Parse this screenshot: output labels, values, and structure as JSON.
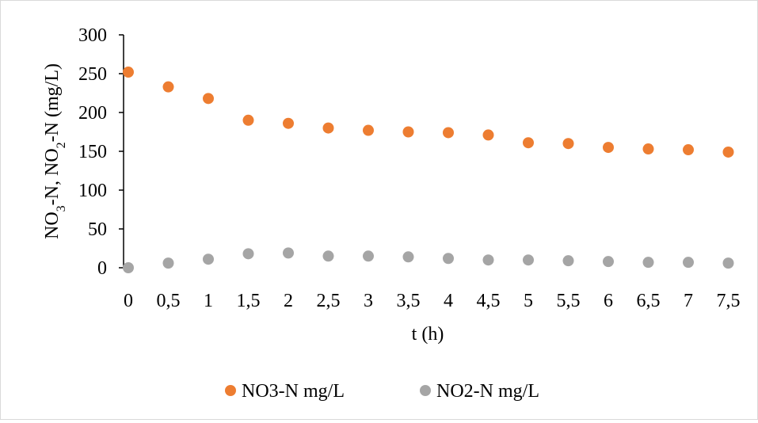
{
  "chart_data": {
    "type": "scatter",
    "xlabel": "t (h)",
    "ylabel": {
      "parts": [
        "NO",
        "3",
        "-N, NO",
        "2",
        "-N (mg/L)"
      ]
    },
    "x": [
      0,
      0.5,
      1,
      1.5,
      2,
      2.5,
      3,
      3.5,
      4,
      4.5,
      5,
      5.5,
      6,
      6.5,
      7,
      7.5
    ],
    "xticks": [
      "0",
      "0,5",
      "1",
      "1,5",
      "2",
      "2,5",
      "3",
      "3,5",
      "4",
      "4,5",
      "5",
      "5,5",
      "6",
      "6,5",
      "7",
      "7,5"
    ],
    "ylim": [
      0,
      300
    ],
    "yticks": [
      "0",
      "50",
      "100",
      "150",
      "200",
      "250",
      "300"
    ],
    "grid": false,
    "legend_position": "bottom",
    "series": [
      {
        "name": "NO3-N mg/L",
        "color": "#ED7D31",
        "values": [
          252,
          233,
          218,
          190,
          186,
          180,
          177,
          175,
          174,
          171,
          161,
          160,
          155,
          153,
          152,
          149
        ]
      },
      {
        "name": "NO2-N mg/L",
        "color": "#A5A5A5",
        "values": [
          0,
          6,
          11,
          18,
          19,
          15,
          15,
          14,
          12,
          10,
          10,
          9,
          8,
          7,
          7,
          6
        ]
      }
    ]
  }
}
